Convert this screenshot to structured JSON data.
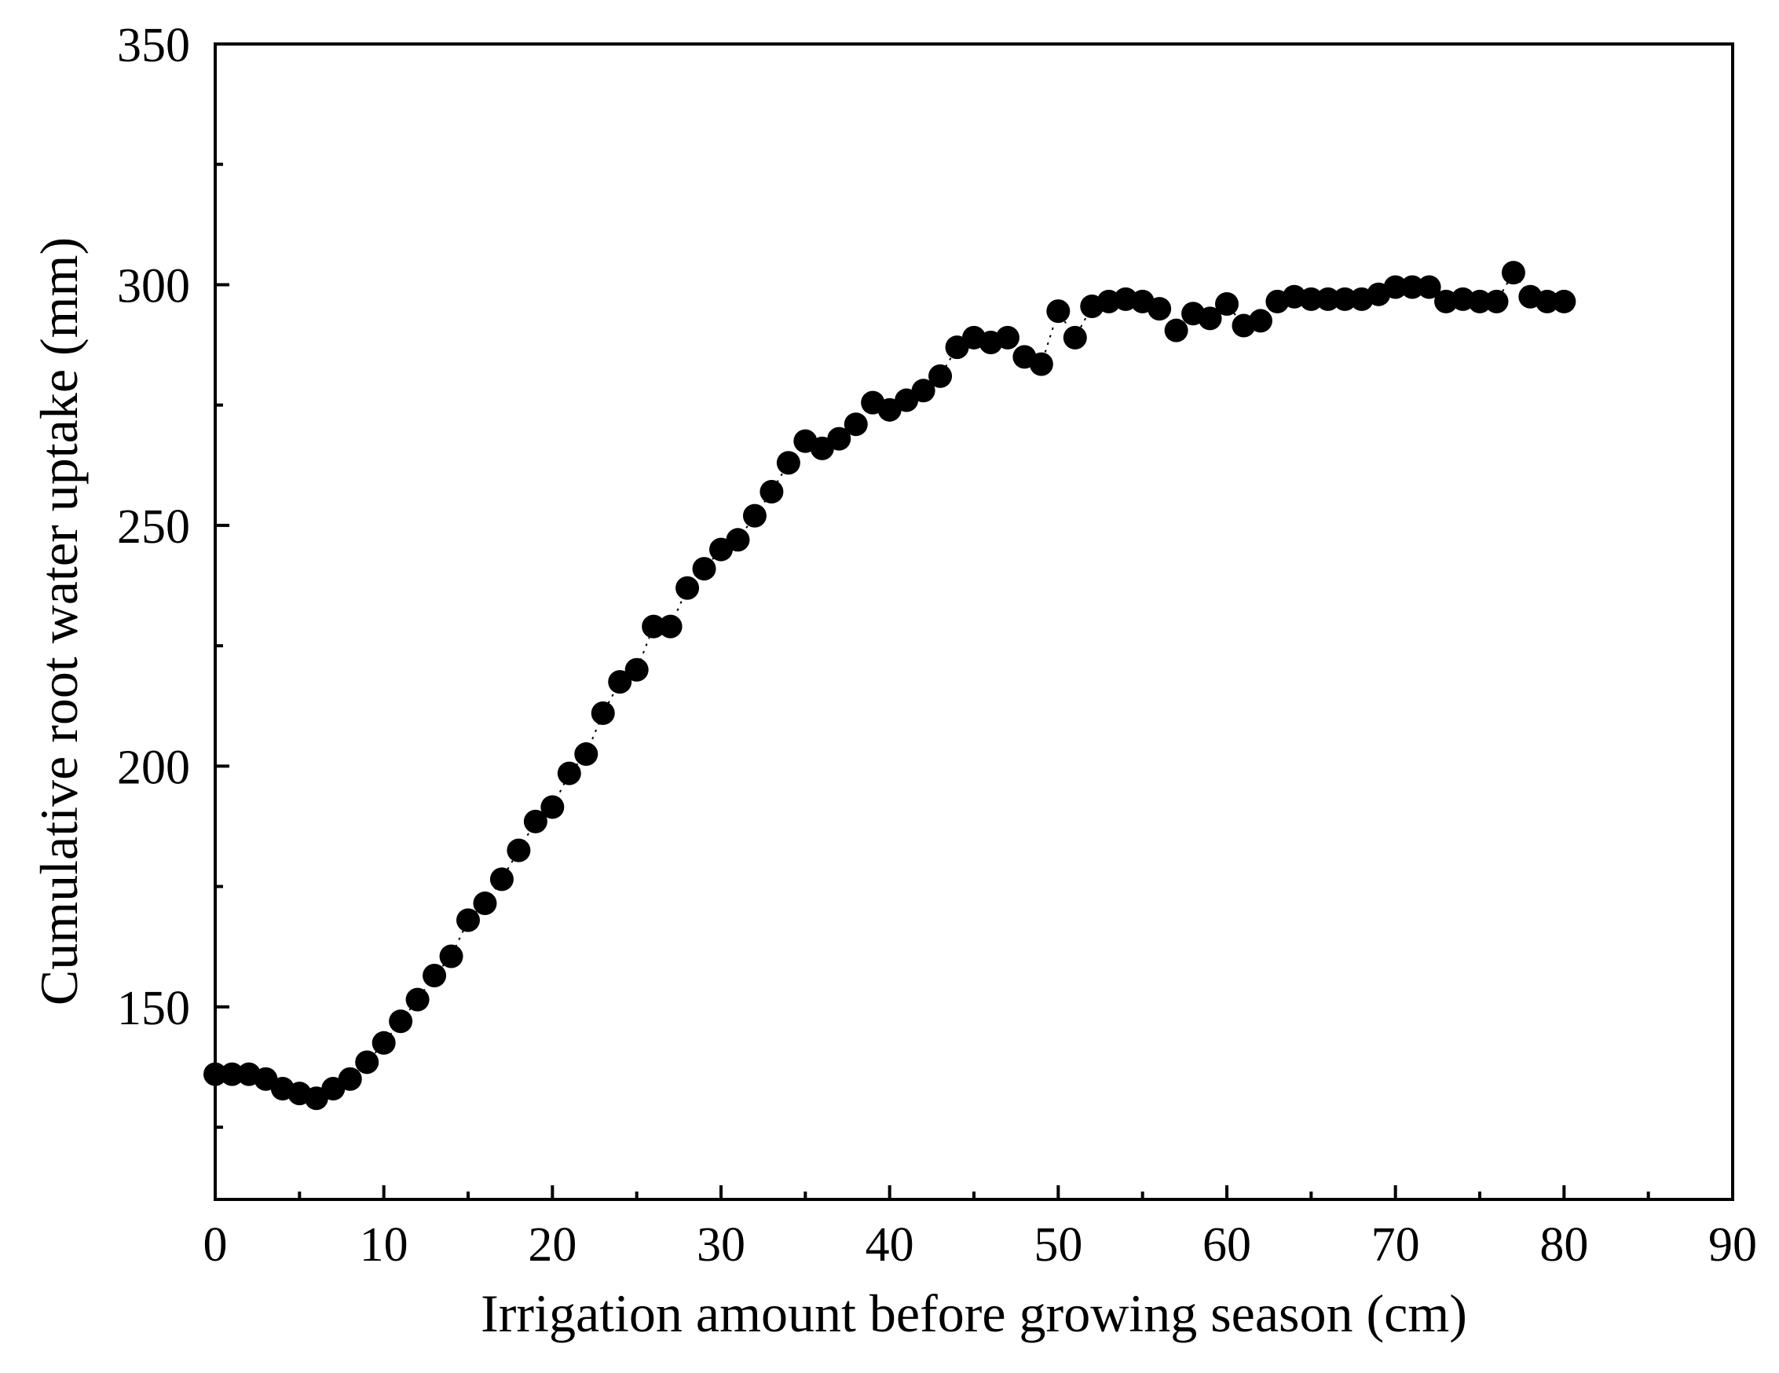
{
  "chart_data": {
    "type": "scatter",
    "title": "",
    "xlabel": "Irrigation amount before growing season (cm)",
    "ylabel": "Cumulative root water uptake (mm)",
    "xlim": [
      0,
      90
    ],
    "ylim": [
      110,
      350
    ],
    "x_ticks": [
      0,
      10,
      20,
      30,
      40,
      50,
      60,
      70,
      80,
      90
    ],
    "x_tick_labels": [
      "0",
      "10",
      "20",
      "30",
      "40",
      "50",
      "60",
      "70",
      "80",
      "90"
    ],
    "y_ticks": [
      150,
      200,
      250,
      300,
      350
    ],
    "y_tick_labels": [
      "150",
      "200",
      "250",
      "300",
      "350"
    ],
    "grid": false,
    "legend": "none",
    "marker_color": "#000000",
    "series": [
      {
        "name": "Cumulative root water uptake",
        "style": "markers with dotted connecting line",
        "x": [
          0,
          1,
          2,
          3,
          4,
          5,
          6,
          7,
          8,
          9,
          10,
          11,
          12,
          13,
          14,
          15,
          16,
          17,
          18,
          19,
          20,
          21,
          22,
          23,
          24,
          25,
          26,
          27,
          28,
          29,
          30,
          31,
          32,
          33,
          34,
          35,
          36,
          37,
          38,
          39,
          40,
          41,
          42,
          43,
          44,
          45,
          46,
          47,
          48,
          49,
          50,
          51,
          52,
          53,
          54,
          55,
          56,
          57,
          58,
          59,
          60,
          61,
          62,
          63,
          64,
          65,
          66,
          67,
          68,
          69,
          70,
          71,
          72,
          73,
          74,
          75,
          76,
          77,
          78,
          79,
          80
        ],
        "y": [
          136,
          136,
          136,
          135,
          133,
          132,
          131,
          133,
          135,
          138.5,
          142.5,
          147,
          151.5,
          156.5,
          160.5,
          168,
          171.5,
          176.5,
          182.5,
          188.5,
          191.5,
          198.5,
          202.5,
          211,
          217.5,
          220,
          229,
          229,
          237,
          241,
          245,
          247,
          252,
          257,
          263,
          267.5,
          266,
          268,
          271,
          275.5,
          274,
          276,
          278,
          281,
          287,
          289,
          288,
          289,
          285,
          283.5,
          294.5,
          289,
          295.5,
          296.5,
          297,
          296.5,
          295,
          290.5,
          294,
          293,
          296,
          291.5,
          292.5,
          296.5,
          297.5,
          297,
          297,
          297,
          297,
          298,
          299.5,
          299.5,
          299.5,
          296.5,
          297,
          296.5,
          296.5,
          302.5,
          297.5,
          296.5,
          296.5
        ]
      }
    ]
  }
}
